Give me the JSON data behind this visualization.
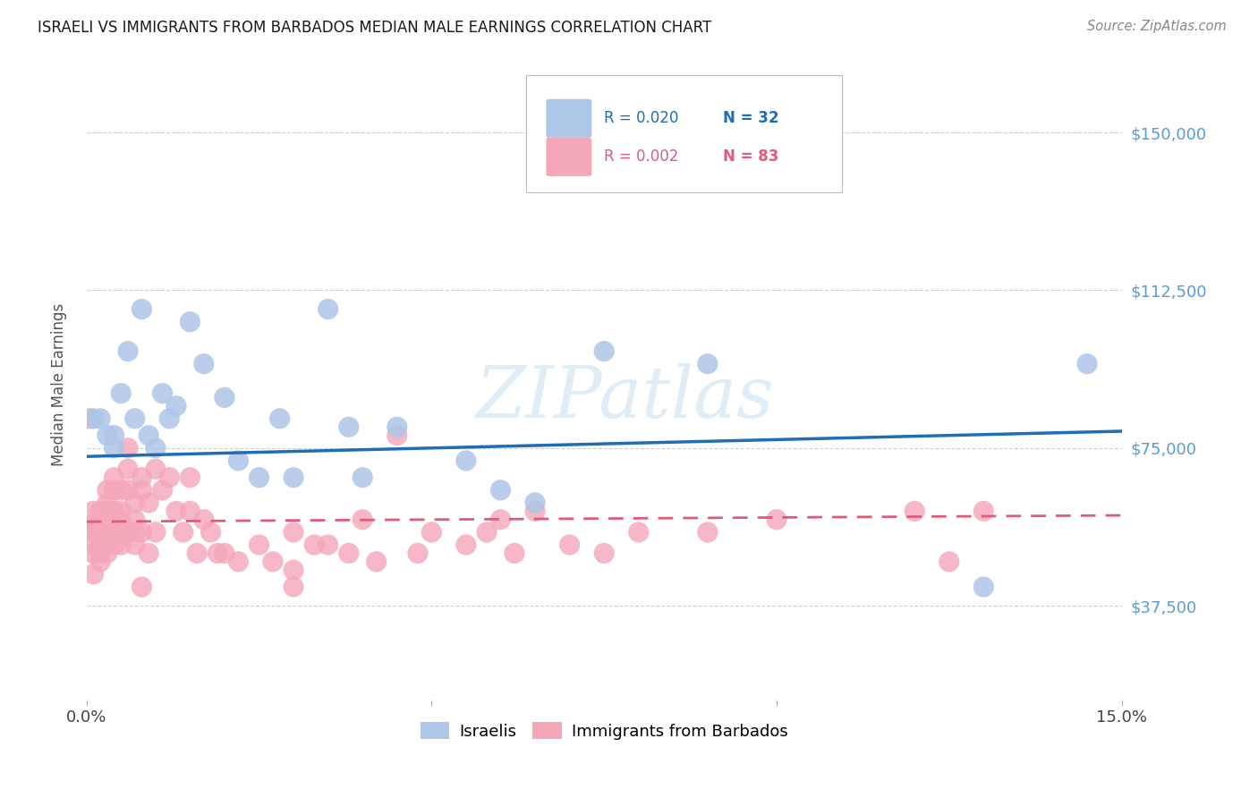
{
  "title": "ISRAELI VS IMMIGRANTS FROM BARBADOS MEDIAN MALE EARNINGS CORRELATION CHART",
  "source": "Source: ZipAtlas.com",
  "ylabel": "Median Male Earnings",
  "watermark": "ZIPatlas",
  "xlim": [
    0.0,
    0.15
  ],
  "ylim": [
    15000,
    165000
  ],
  "yticks": [
    37500,
    75000,
    112500,
    150000
  ],
  "ytick_labels": [
    "$37,500",
    "$75,000",
    "$112,500",
    "$150,000"
  ],
  "xticks": [
    0.0,
    0.05,
    0.1,
    0.15
  ],
  "xtick_labels": [
    "0.0%",
    "",
    "",
    "15.0%"
  ],
  "israeli_color": "#aec6e8",
  "barbados_color": "#f4a7b9",
  "israeli_line_color": "#1f6db5",
  "barbados_line_color": "#e05a7a",
  "grid_color": "#d0d0d0",
  "background_color": "#ffffff",
  "title_color": "#1a1a1a",
  "ylabel_color": "#555555",
  "right_tick_color": "#5b9bd5",
  "israelis_x": [
    0.001,
    0.002,
    0.003,
    0.004,
    0.004,
    0.005,
    0.006,
    0.007,
    0.008,
    0.009,
    0.01,
    0.011,
    0.012,
    0.013,
    0.015,
    0.017,
    0.02,
    0.022,
    0.025,
    0.028,
    0.03,
    0.035,
    0.038,
    0.04,
    0.045,
    0.055,
    0.06,
    0.065,
    0.075,
    0.09,
    0.13,
    0.145
  ],
  "israelis_y": [
    82000,
    82000,
    78000,
    75000,
    78000,
    88000,
    98000,
    82000,
    108000,
    78000,
    75000,
    88000,
    82000,
    85000,
    105000,
    95000,
    87000,
    72000,
    68000,
    82000,
    68000,
    108000,
    80000,
    68000,
    80000,
    72000,
    65000,
    62000,
    98000,
    95000,
    42000,
    95000
  ],
  "barbados_x": [
    0.0005,
    0.001,
    0.001,
    0.001,
    0.001,
    0.001,
    0.001,
    0.001,
    0.002,
    0.002,
    0.002,
    0.002,
    0.002,
    0.002,
    0.002,
    0.003,
    0.003,
    0.003,
    0.003,
    0.003,
    0.003,
    0.004,
    0.004,
    0.004,
    0.004,
    0.004,
    0.005,
    0.005,
    0.005,
    0.005,
    0.005,
    0.006,
    0.006,
    0.006,
    0.006,
    0.007,
    0.007,
    0.007,
    0.007,
    0.008,
    0.008,
    0.008,
    0.009,
    0.009,
    0.01,
    0.01,
    0.011,
    0.012,
    0.013,
    0.014,
    0.015,
    0.015,
    0.016,
    0.017,
    0.018,
    0.019,
    0.02,
    0.022,
    0.025,
    0.027,
    0.03,
    0.03,
    0.033,
    0.035,
    0.038,
    0.04,
    0.042,
    0.045,
    0.048,
    0.05,
    0.055,
    0.058,
    0.06,
    0.062,
    0.065,
    0.07,
    0.075,
    0.08,
    0.09,
    0.1,
    0.12,
    0.125,
    0.13,
    0.008,
    0.03
  ],
  "barbados_y": [
    82000,
    60000,
    57000,
    55000,
    52000,
    50000,
    55000,
    45000,
    60000,
    57000,
    55000,
    52000,
    50000,
    55000,
    48000,
    65000,
    62000,
    60000,
    55000,
    52000,
    50000,
    68000,
    65000,
    60000,
    55000,
    52000,
    60000,
    58000,
    65000,
    55000,
    52000,
    75000,
    70000,
    65000,
    55000,
    62000,
    58000,
    55000,
    52000,
    68000,
    65000,
    55000,
    62000,
    50000,
    70000,
    55000,
    65000,
    68000,
    60000,
    55000,
    68000,
    60000,
    50000,
    58000,
    55000,
    50000,
    50000,
    48000,
    52000,
    48000,
    55000,
    42000,
    52000,
    52000,
    50000,
    58000,
    48000,
    78000,
    50000,
    55000,
    52000,
    55000,
    58000,
    50000,
    60000,
    52000,
    50000,
    55000,
    55000,
    58000,
    60000,
    48000,
    60000,
    42000,
    46000
  ],
  "israeli_trend": [
    73000,
    79000
  ],
  "barbados_trend": [
    57500,
    59000
  ]
}
